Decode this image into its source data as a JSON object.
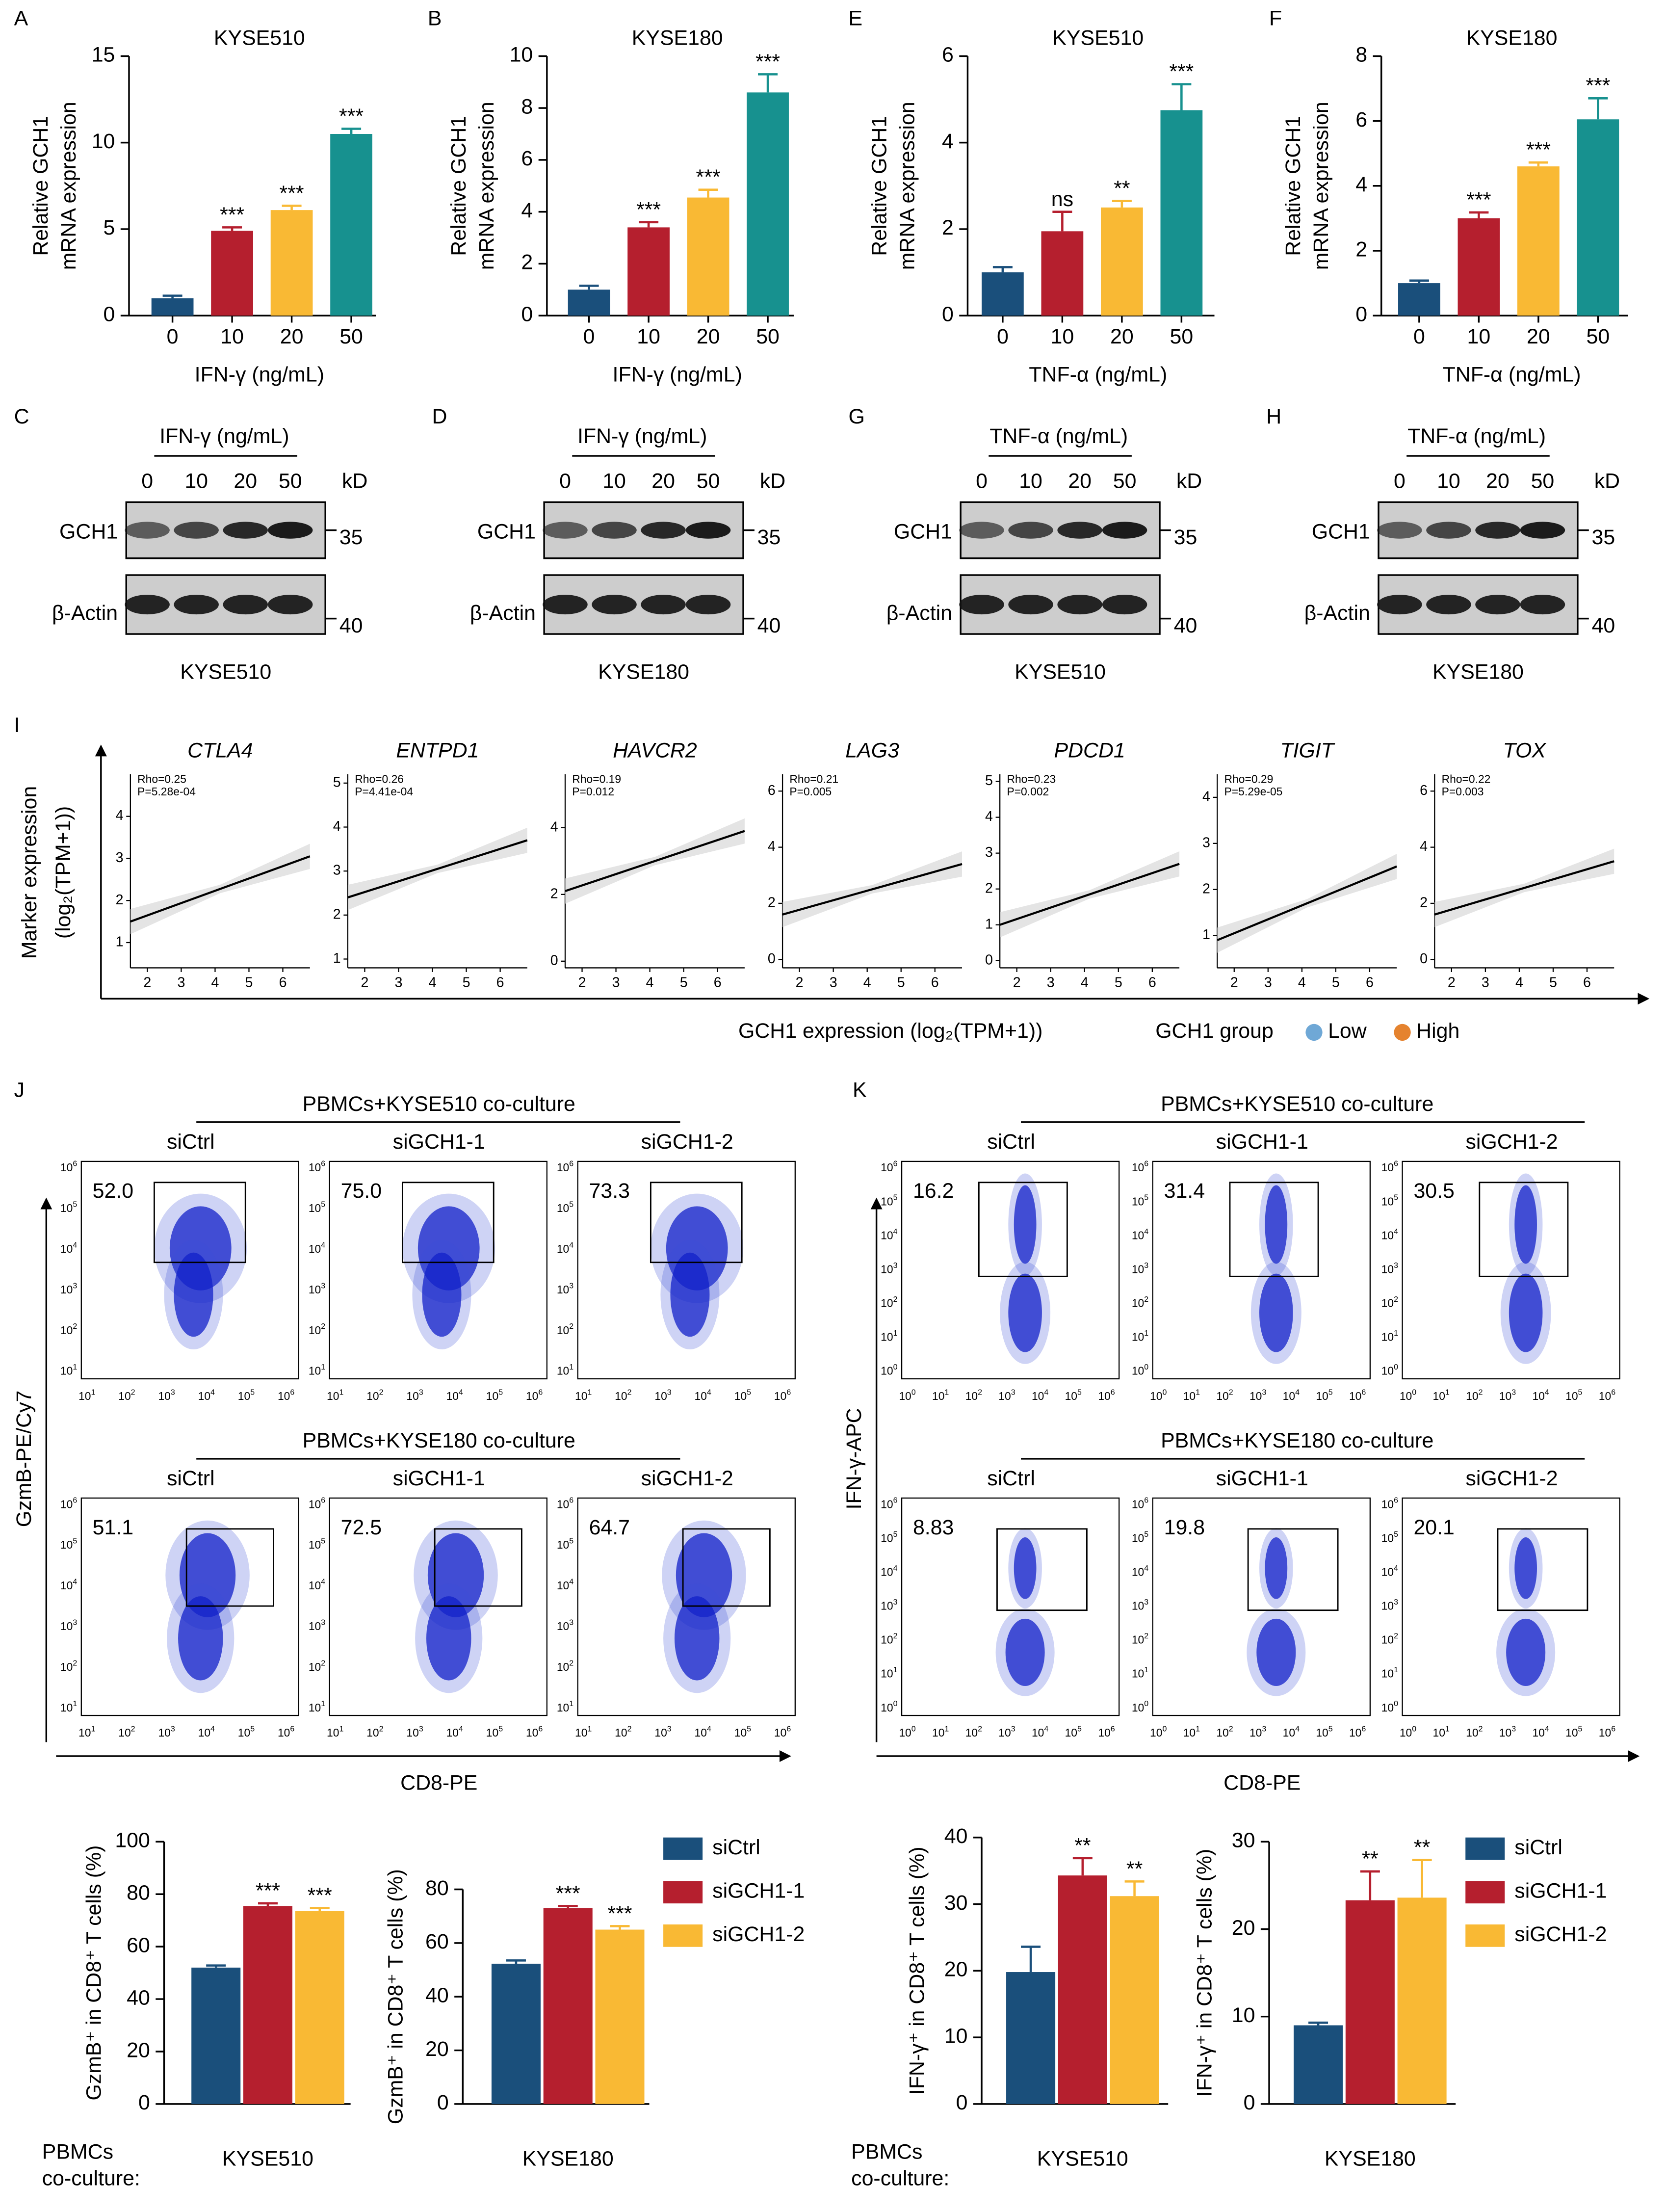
{
  "chart_data": [
    {
      "type": "bar",
      "label": "A",
      "title": "KYSE510",
      "ylabel": [
        "Relative GCH1",
        "mRNA expression"
      ],
      "xlabel": "IFN-γ (ng/mL)",
      "categories": [
        "0",
        "10",
        "20",
        "50"
      ],
      "values": [
        1,
        4.9,
        6.1,
        10.5
      ],
      "errors": [
        0.15,
        0.2,
        0.25,
        0.3
      ],
      "significance": [
        null,
        "***",
        "***",
        "***"
      ],
      "colors": [
        "#1a4f7b",
        "#b51f2e",
        "#f9b934",
        "#17918f"
      ],
      "ylim": [
        0,
        15
      ],
      "yticks": [
        0,
        5,
        10,
        15
      ]
    },
    {
      "type": "bar",
      "label": "B",
      "title": "KYSE180",
      "ylabel": [
        "Relative GCH1",
        "mRNA expression"
      ],
      "xlabel": "IFN-γ (ng/mL)",
      "categories": [
        "0",
        "10",
        "20",
        "50"
      ],
      "values": [
        1,
        3.4,
        4.55,
        8.6
      ],
      "errors": [
        0.15,
        0.2,
        0.3,
        0.7
      ],
      "significance": [
        null,
        "***",
        "***",
        "***"
      ],
      "colors": [
        "#1a4f7b",
        "#b51f2e",
        "#f9b934",
        "#17918f"
      ],
      "ylim": [
        0,
        10
      ],
      "yticks": [
        0,
        2,
        4,
        6,
        8,
        10
      ]
    },
    {
      "type": "bar",
      "label": "E",
      "title": "KYSE510",
      "ylabel": [
        "Relative GCH1",
        "mRNA expression"
      ],
      "xlabel": "TNF-α (ng/mL)",
      "categories": [
        "0",
        "10",
        "20",
        "50"
      ],
      "values": [
        1,
        1.95,
        2.5,
        4.75
      ],
      "errors": [
        0.12,
        0.45,
        0.15,
        0.6
      ],
      "significance": [
        null,
        "ns",
        "**",
        "***"
      ],
      "colors": [
        "#1a4f7b",
        "#b51f2e",
        "#f9b934",
        "#17918f"
      ],
      "ylim": [
        0,
        6
      ],
      "yticks": [
        0,
        2,
        4,
        6
      ]
    },
    {
      "type": "bar",
      "label": "F",
      "title": "KYSE180",
      "ylabel": [
        "Relative GCH1",
        "mRNA expression"
      ],
      "xlabel": "TNF-α (ng/mL)",
      "categories": [
        "0",
        "10",
        "20",
        "50"
      ],
      "values": [
        1,
        3,
        4.6,
        6.05
      ],
      "errors": [
        0.08,
        0.18,
        0.12,
        0.65
      ],
      "significance": [
        null,
        "***",
        "***",
        "***"
      ],
      "colors": [
        "#1a4f7b",
        "#b51f2e",
        "#f9b934",
        "#17918f"
      ],
      "ylim": [
        0,
        8
      ],
      "yticks": [
        0,
        2,
        4,
        6,
        8
      ]
    },
    {
      "type": "scatter",
      "label": "I",
      "ylabel": [
        "Marker expression",
        "(log₂(TPM+1))"
      ],
      "xlabel": "GCH1 expression (log₂(TPM+1))",
      "legend_title": "GCH1 group",
      "groups": [
        {
          "name": "Low",
          "color": "#6fa8d6"
        },
        {
          "name": "High",
          "color": "#e5832f"
        }
      ],
      "panels": [
        {
          "title": "CTLA4",
          "annotations": [
            "Rho=0.25",
            "P=5.28e-04"
          ],
          "xlim": [
            1.5,
            6.8
          ],
          "xticks": [
            2,
            3,
            4,
            5,
            6
          ],
          "ylim": [
            0.4,
            5
          ],
          "yticks": [
            1,
            2,
            3,
            4
          ],
          "fit": {
            "x": [
              1.5,
              6.8
            ],
            "y": [
              1.5,
              3.05
            ]
          }
        },
        {
          "title": "ENTPD1",
          "annotations": [
            "Rho=0.26",
            "P=4.41e-04"
          ],
          "xlim": [
            1.5,
            6.8
          ],
          "xticks": [
            2,
            3,
            4,
            5,
            6
          ],
          "ylim": [
            0.8,
            5.2
          ],
          "yticks": [
            1,
            2,
            3,
            4,
            5
          ],
          "fit": {
            "x": [
              1.5,
              6.8
            ],
            "y": [
              2.4,
              3.7
            ]
          }
        },
        {
          "title": "HAVCR2",
          "annotations": [
            "Rho=0.19",
            "P=0.012"
          ],
          "xlim": [
            1.5,
            6.8
          ],
          "xticks": [
            2,
            3,
            4,
            5,
            6
          ],
          "ylim": [
            -0.2,
            5.6
          ],
          "yticks": [
            0,
            2,
            4
          ],
          "fit": {
            "x": [
              1.5,
              6.8
            ],
            "y": [
              2.1,
              3.9
            ]
          }
        },
        {
          "title": "LAG3",
          "annotations": [
            "Rho=0.21",
            "P=0.005"
          ],
          "xlim": [
            1.5,
            6.8
          ],
          "xticks": [
            2,
            3,
            4,
            5,
            6
          ],
          "ylim": [
            -0.3,
            6.6
          ],
          "yticks": [
            0,
            2,
            4,
            6
          ],
          "fit": {
            "x": [
              1.5,
              6.8
            ],
            "y": [
              1.6,
              3.4
            ]
          }
        },
        {
          "title": "PDCD1",
          "annotations": [
            "Rho=0.23",
            "P=0.002"
          ],
          "xlim": [
            1.5,
            6.8
          ],
          "xticks": [
            2,
            3,
            4,
            5,
            6
          ],
          "ylim": [
            -0.2,
            5.2
          ],
          "yticks": [
            0,
            1,
            2,
            3,
            4,
            5
          ],
          "fit": {
            "x": [
              1.5,
              6.8
            ],
            "y": [
              1.0,
              2.7
            ]
          }
        },
        {
          "title": "TIGIT",
          "annotations": [
            "Rho=0.29",
            "P=5.29e-05"
          ],
          "xlim": [
            1.5,
            6.8
          ],
          "xticks": [
            2,
            3,
            4,
            5,
            6
          ],
          "ylim": [
            0.3,
            4.5
          ],
          "yticks": [
            1,
            2,
            3,
            4
          ],
          "fit": {
            "x": [
              1.5,
              6.8
            ],
            "y": [
              0.9,
              2.5
            ]
          }
        },
        {
          "title": "TOX",
          "annotations": [
            "Rho=0.22",
            "P=0.003"
          ],
          "xlim": [
            1.5,
            6.8
          ],
          "xticks": [
            2,
            3,
            4,
            5,
            6
          ],
          "ylim": [
            -0.3,
            6.6
          ],
          "yticks": [
            0,
            2,
            4,
            6
          ],
          "fit": {
            "x": [
              1.5,
              6.8
            ],
            "y": [
              1.6,
              3.5
            ]
          }
        }
      ]
    },
    {
      "type": "bar",
      "ylabel": [
        "GzmB⁺ in CD8⁺ T cells (%)"
      ],
      "categories": [
        "KYSE510"
      ],
      "group_label": [
        "PBMCs",
        "co-culture:"
      ],
      "series": [
        {
          "color": "#1a4f7b",
          "values": [
            52
          ],
          "errors": [
            0.8
          ],
          "significance": [
            null
          ]
        },
        {
          "color": "#b51f2e",
          "values": [
            75.5
          ],
          "errors": [
            1
          ],
          "significance": [
            "***"
          ]
        },
        {
          "color": "#f9b934",
          "values": [
            73.5
          ],
          "errors": [
            1.2
          ],
          "significance": [
            "***"
          ]
        }
      ],
      "ylim": [
        0,
        100
      ],
      "yticks": [
        0,
        20,
        40,
        60,
        80,
        100
      ]
    },
    {
      "type": "bar",
      "ylabel": [
        "GzmB⁺ in CD8⁺ T cells (%)"
      ],
      "categories": [
        "KYSE180"
      ],
      "legend": true,
      "series": [
        {
          "name": "siCtrl",
          "color": "#1a4f7b",
          "values": [
            52.3
          ],
          "errors": [
            1.2
          ],
          "significance": [
            null
          ]
        },
        {
          "name": "siGCH1-1",
          "color": "#b51f2e",
          "values": [
            73
          ],
          "errors": [
            0.8
          ],
          "significance": [
            "***"
          ]
        },
        {
          "name": "siGCH1-2",
          "color": "#f9b934",
          "values": [
            65
          ],
          "errors": [
            1.3
          ],
          "significance": [
            "***"
          ]
        }
      ],
      "ylim": [
        0,
        80
      ],
      "yticks": [
        0,
        20,
        40,
        60,
        80
      ]
    },
    {
      "type": "bar",
      "ylabel": [
        "IFN-γ⁺ in CD8⁺ T cells (%)"
      ],
      "categories": [
        "KYSE510"
      ],
      "group_label": [
        "PBMCs",
        "co-culture:"
      ],
      "series": [
        {
          "color": "#1a4f7b",
          "values": [
            19.8
          ],
          "errors": [
            3.8
          ],
          "significance": [
            null
          ]
        },
        {
          "color": "#b51f2e",
          "values": [
            34.3
          ],
          "errors": [
            2.6
          ],
          "significance": [
            "**"
          ]
        },
        {
          "color": "#f9b934",
          "values": [
            31.2
          ],
          "errors": [
            2.2
          ],
          "significance": [
            "**"
          ]
        }
      ],
      "ylim": [
        0,
        40
      ],
      "yticks": [
        0,
        10,
        20,
        30,
        40
      ]
    },
    {
      "type": "bar",
      "ylabel": [
        "IFN-γ⁺ in CD8⁺ T cells (%)"
      ],
      "categories": [
        "KYSE180"
      ],
      "legend": true,
      "series": [
        {
          "name": "siCtrl",
          "color": "#1a4f7b",
          "values": [
            9
          ],
          "errors": [
            0.3
          ],
          "significance": [
            null
          ]
        },
        {
          "name": "siGCH1-1",
          "color": "#b51f2e",
          "values": [
            23.3
          ],
          "errors": [
            3.3
          ],
          "significance": [
            "**"
          ]
        },
        {
          "name": "siGCH1-2",
          "color": "#f9b934",
          "values": [
            23.6
          ],
          "errors": [
            4.3
          ],
          "significance": [
            "**"
          ]
        }
      ],
      "ylim": [
        0,
        30
      ],
      "yticks": [
        0,
        10,
        20,
        30
      ]
    }
  ],
  "blots": [
    {
      "label": "C",
      "treatment": "IFN-γ (ng/mL)",
      "lanes": [
        "0",
        "10",
        "20",
        "50"
      ],
      "unit": "kD",
      "rows": [
        {
          "protein": "GCH1",
          "marker": "35"
        },
        {
          "protein": "β-Actin",
          "marker": "40"
        }
      ],
      "cell_line": "KYSE510"
    },
    {
      "label": "D",
      "treatment": "IFN-γ (ng/mL)",
      "lanes": [
        "0",
        "10",
        "20",
        "50"
      ],
      "unit": "kD",
      "rows": [
        {
          "protein": "GCH1",
          "marker": "35"
        },
        {
          "protein": "β-Actin",
          "marker": "40"
        }
      ],
      "cell_line": "KYSE180"
    },
    {
      "label": "G",
      "treatment": "TNF-α (ng/mL)",
      "lanes": [
        "0",
        "10",
        "20",
        "50"
      ],
      "unit": "kD",
      "rows": [
        {
          "protein": "GCH1",
          "marker": "35"
        },
        {
          "protein": "β-Actin",
          "marker": "40"
        }
      ],
      "cell_line": "KYSE510"
    },
    {
      "label": "H",
      "treatment": "TNF-α (ng/mL)",
      "lanes": [
        "0",
        "10",
        "20",
        "50"
      ],
      "unit": "kD",
      "rows": [
        {
          "protein": "GCH1",
          "marker": "35"
        },
        {
          "protein": "β-Actin",
          "marker": "40"
        }
      ],
      "cell_line": "KYSE180"
    }
  ],
  "flow": [
    {
      "label": "J",
      "ylabel": "GzmB-PE/Cy7",
      "xlabel": "CD8-PE",
      "xticks": [
        {
          "base": "10",
          "exp": "1"
        },
        {
          "base": "10",
          "exp": "2"
        },
        {
          "base": "10",
          "exp": "3"
        },
        {
          "base": "10",
          "exp": "4"
        },
        {
          "base": "10",
          "exp": "5"
        },
        {
          "base": "10",
          "exp": "6"
        }
      ],
      "yticks": [
        {
          "base": "10",
          "exp": "1"
        },
        {
          "base": "10",
          "exp": "2"
        },
        {
          "base": "10",
          "exp": "3"
        },
        {
          "base": "10",
          "exp": "4"
        },
        {
          "base": "10",
          "exp": "5"
        },
        {
          "base": "10",
          "exp": "6"
        }
      ],
      "rows": [
        {
          "header": "PBMCs+KYSE510 co-culture",
          "columns": [
            "siCtrl",
            "siGCH1-1",
            "siGCH1-2"
          ],
          "percentages": [
            "52.0",
            "75.0",
            "73.3"
          ]
        },
        {
          "header": "PBMCs+KYSE180 co-culture",
          "columns": [
            "siCtrl",
            "siGCH1-1",
            "siGCH1-2"
          ],
          "percentages": [
            "51.1",
            "72.5",
            "64.7"
          ]
        }
      ]
    },
    {
      "label": "K",
      "ylabel": "IFN-γ-APC",
      "xlabel": "CD8-PE",
      "xticks": [
        {
          "base": "10",
          "exp": "0"
        },
        {
          "base": "10",
          "exp": "1"
        },
        {
          "base": "10",
          "exp": "2"
        },
        {
          "base": "10",
          "exp": "3"
        },
        {
          "base": "10",
          "exp": "4"
        },
        {
          "base": "10",
          "exp": "5"
        },
        {
          "base": "10",
          "exp": "6"
        }
      ],
      "yticks": [
        {
          "base": "10",
          "exp": "0"
        },
        {
          "base": "10",
          "exp": "1"
        },
        {
          "base": "10",
          "exp": "2"
        },
        {
          "base": "10",
          "exp": "3"
        },
        {
          "base": "10",
          "exp": "4"
        },
        {
          "base": "10",
          "exp": "5"
        },
        {
          "base": "10",
          "exp": "6"
        }
      ],
      "rows": [
        {
          "header": "PBMCs+KYSE510 co-culture",
          "columns": [
            "siCtrl",
            "siGCH1-1",
            "siGCH1-2"
          ],
          "percentages": [
            "16.2",
            "31.4",
            "30.5"
          ]
        },
        {
          "header": "PBMCs+KYSE180 co-culture",
          "columns": [
            "siCtrl",
            "siGCH1-1",
            "siGCH1-2"
          ],
          "percentages": [
            "8.83",
            "19.8",
            "20.1"
          ]
        }
      ]
    }
  ]
}
